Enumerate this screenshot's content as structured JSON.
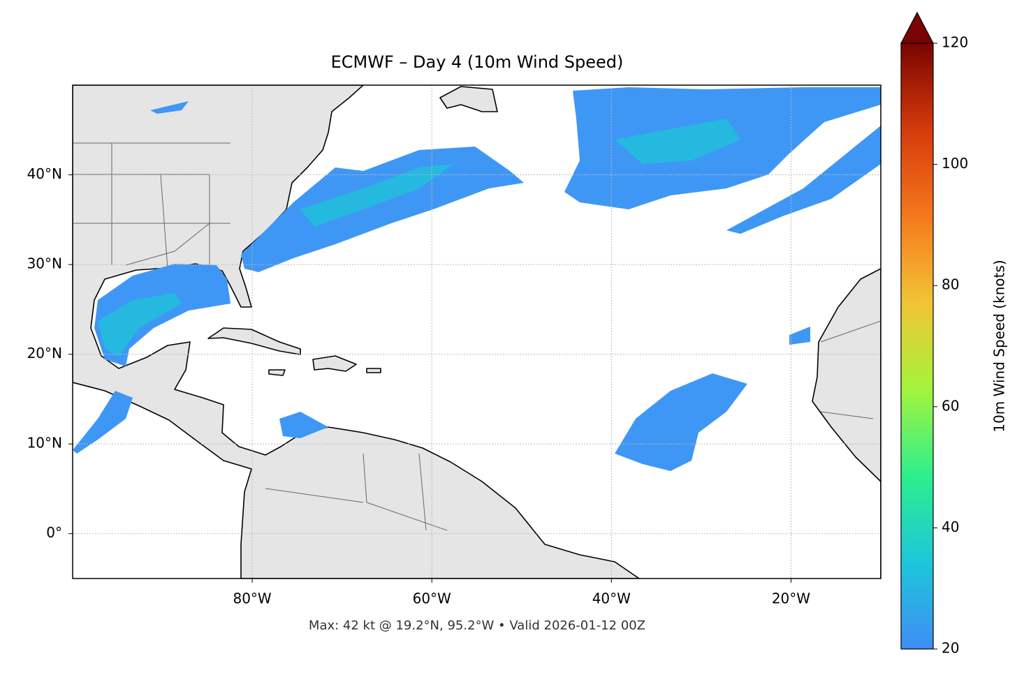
{
  "chart_data": {
    "type": "map",
    "title": "ECMWF – Day 4 (10m Wind Speed)",
    "xlim": [
      -100,
      -10
    ],
    "ylim": [
      -5,
      50
    ],
    "xticks": [
      {
        "value": -80,
        "label": "80°W"
      },
      {
        "value": -60,
        "label": "60°W"
      },
      {
        "value": -40,
        "label": "40°W"
      },
      {
        "value": -20,
        "label": "20°W"
      }
    ],
    "yticks": [
      {
        "value": 0,
        "label": "0°"
      },
      {
        "value": 10,
        "label": "10°N"
      },
      {
        "value": 20,
        "label": "20°N"
      },
      {
        "value": 30,
        "label": "30°N"
      },
      {
        "value": 40,
        "label": "40°N"
      }
    ],
    "grid": true,
    "colorbar": {
      "label": "10m Wind Speed (knots)",
      "lim": [
        20,
        120
      ],
      "ticks": [
        20,
        40,
        60,
        80,
        100,
        120
      ],
      "colors": [
        "#3f8df5",
        "#1dc6da",
        "#2cef8c",
        "#a3f43c",
        "#f2c434",
        "#f5781d",
        "#d53b0b",
        "#7a0403"
      ],
      "extend": "max"
    },
    "footer": "Max: 42 kt @ 19.2°N, 95.2°W • Valid 2026-01-12 00Z"
  }
}
